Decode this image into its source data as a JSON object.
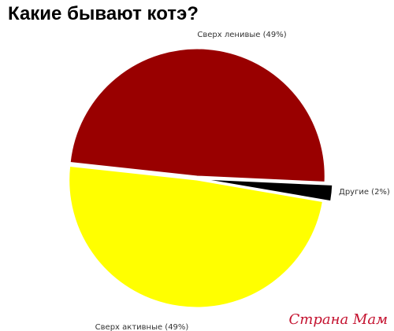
{
  "chart_data": {
    "type": "pie",
    "title": "Какие бывают котэ?",
    "slices": [
      {
        "label": "Сверх ленивые (49%)",
        "value": 49,
        "color": "#990000"
      },
      {
        "label": "Другие (2%)",
        "value": 2,
        "color": "#000000"
      },
      {
        "label": "Сверх активные (49%)",
        "value": 49,
        "color": "#ffff00"
      }
    ],
    "legend": "none"
  },
  "watermark": "Страна Мам"
}
